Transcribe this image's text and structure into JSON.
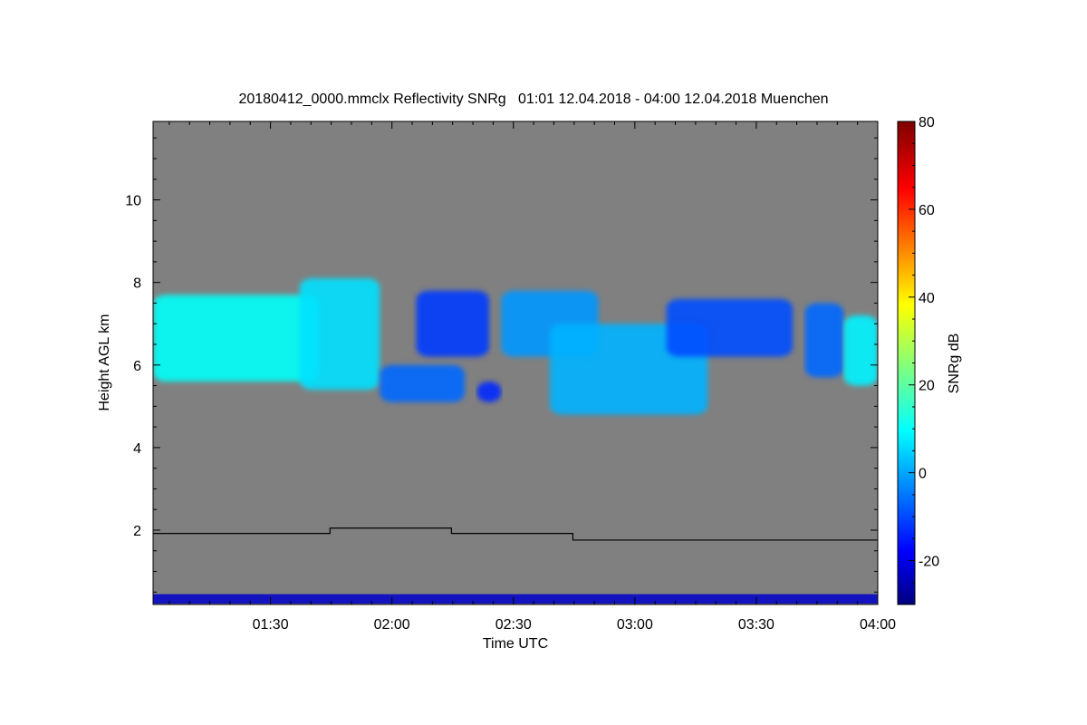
{
  "chart_data": {
    "type": "heatmap",
    "title": "20180412_0000.mmclx Reflectivity SNRg   01:01 12.04.2018 - 04:00 12.04.2018 Muenchen",
    "xlabel": "Time UTC",
    "ylabel": "Height AGL km",
    "x_range_hours": [
      1.0167,
      4.0
    ],
    "y_range_km": [
      0.2,
      11.9
    ],
    "x_ticks": [
      {
        "label": "01:30",
        "value": 1.5
      },
      {
        "label": "02:00",
        "value": 2.0
      },
      {
        "label": "02:30",
        "value": 2.5
      },
      {
        "label": "03:00",
        "value": 3.0
      },
      {
        "label": "03:30",
        "value": 3.5
      },
      {
        "label": "04:00",
        "value": 4.0
      }
    ],
    "y_ticks": [
      {
        "label": "2",
        "value": 2
      },
      {
        "label": "4",
        "value": 4
      },
      {
        "label": "6",
        "value": 6
      },
      {
        "label": "8",
        "value": 8
      },
      {
        "label": "10",
        "value": 10
      }
    ],
    "background_color": "#808080",
    "colorbar": {
      "label": "SNRg dB",
      "range": [
        -30,
        80
      ],
      "colormap": "jet",
      "ticks": [
        {
          "label": "80",
          "value": 80
        },
        {
          "label": "60",
          "value": 60
        },
        {
          "label": "40",
          "value": 40
        },
        {
          "label": "20",
          "value": 20
        },
        {
          "label": "0",
          "value": 0
        },
        {
          "label": "-20",
          "value": -20
        }
      ]
    },
    "cloud_regions": [
      {
        "t0": 1.0167,
        "t1": 1.7,
        "top_km": 7.7,
        "base_km": 5.6,
        "snr": 12
      },
      {
        "t0": 1.62,
        "t1": 1.95,
        "top_km": 8.1,
        "base_km": 5.4,
        "snr": 8
      },
      {
        "t0": 1.95,
        "t1": 2.3,
        "top_km": 6.0,
        "base_km": 5.1,
        "snr": -5
      },
      {
        "t0": 2.1,
        "t1": 2.4,
        "top_km": 7.8,
        "base_km": 6.2,
        "snr": -10
      },
      {
        "t0": 2.35,
        "t1": 2.45,
        "top_km": 5.6,
        "base_km": 5.1,
        "snr": -12
      },
      {
        "t0": 2.45,
        "t1": 2.85,
        "top_km": 7.8,
        "base_km": 6.2,
        "snr": 0
      },
      {
        "t0": 2.65,
        "t1": 3.3,
        "top_km": 7.0,
        "base_km": 4.8,
        "snr": 3
      },
      {
        "t0": 3.13,
        "t1": 3.65,
        "top_km": 7.6,
        "base_km": 6.2,
        "snr": -8
      },
      {
        "t0": 3.7,
        "t1": 3.86,
        "top_km": 7.5,
        "base_km": 5.7,
        "snr": -5
      },
      {
        "t0": 3.86,
        "t1": 4.0,
        "top_km": 7.2,
        "base_km": 5.5,
        "snr": 10
      }
    ],
    "cloud_base_line": {
      "color": "#000000",
      "segments": [
        {
          "t0": 1.0167,
          "t1": 1.745,
          "height_km": 1.92
        },
        {
          "t0": 1.745,
          "t1": 2.245,
          "height_km": 2.05
        },
        {
          "t0": 2.245,
          "t1": 2.745,
          "height_km": 1.92
        },
        {
          "t0": 2.745,
          "t1": 4.0,
          "height_km": 1.76
        }
      ]
    },
    "near_surface_band": {
      "top_km": 0.45,
      "base_km": 0.22,
      "snr": -22
    }
  }
}
